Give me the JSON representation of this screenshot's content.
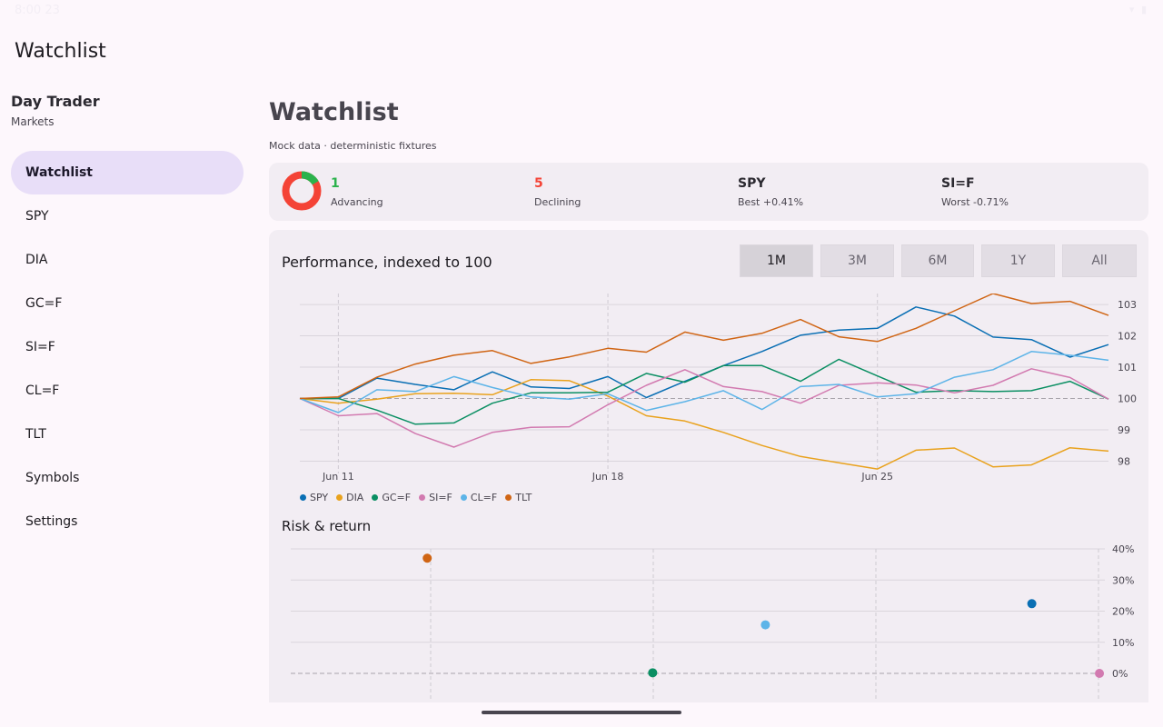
{
  "status_bar": {
    "time": "8:00 23",
    "icons": "wifi-icon battery-icon"
  },
  "app_bar": {
    "title": "Watchlist"
  },
  "sidebar": {
    "brand": "Day Trader",
    "subtitle": "Markets",
    "items": [
      {
        "label": "Watchlist",
        "active": true
      },
      {
        "label": "SPY"
      },
      {
        "label": "DIA"
      },
      {
        "label": "GC=F"
      },
      {
        "label": "SI=F"
      },
      {
        "label": "CL=F"
      },
      {
        "label": "TLT"
      },
      {
        "label": "Symbols"
      },
      {
        "label": "Settings"
      }
    ]
  },
  "main": {
    "title": "Watchlist",
    "subtitle": "Mock data · deterministic fixtures",
    "summary": {
      "advancing": {
        "value": "1",
        "label": "Advancing",
        "color": "#2bb24c"
      },
      "declining": {
        "value": "5",
        "label": "Declining",
        "color": "#f44336"
      },
      "best": {
        "value": "SPY",
        "label": "Best +0.41%"
      },
      "worst": {
        "value": "SI=F",
        "label": "Worst -0.71%"
      },
      "donut": {
        "advancing_count": 1,
        "declining_count": 5
      }
    },
    "performance": {
      "title": "Performance, indexed to 100",
      "ranges": [
        {
          "label": "1M",
          "active": true
        },
        {
          "label": "3M"
        },
        {
          "label": "6M"
        },
        {
          "label": "1Y"
        },
        {
          "label": "All"
        }
      ]
    },
    "risk": {
      "title": "Risk & return"
    }
  },
  "chart_data": [
    {
      "type": "line",
      "title": "Performance, indexed to 100",
      "x_ticks": [
        {
          "label": "Jun 11",
          "index": 1
        },
        {
          "label": "Jun 18",
          "index": 8
        },
        {
          "label": "Jun 25",
          "index": 15
        }
      ],
      "y_ticks": [
        98,
        99,
        100,
        101,
        102,
        103
      ],
      "ylim": [
        97.55,
        103.35
      ],
      "baseline": 100,
      "legend": "bottom-left",
      "series": [
        {
          "name": "SPY",
          "color": "#0a6fb4",
          "values": [
            100,
            100,
            100.65,
            100.45,
            100.28,
            100.85,
            100.37,
            100.32,
            100.7,
            100.03,
            100.55,
            101.05,
            101.5,
            102.02,
            102.18,
            102.24,
            102.92,
            102.63,
            101.96,
            101.88,
            101.32,
            101.72
          ]
        },
        {
          "name": "DIA",
          "color": "#e9a21d",
          "values": [
            100,
            99.85,
            99.98,
            100.15,
            100.17,
            100.12,
            100.6,
            100.57,
            100.08,
            99.45,
            99.28,
            98.92,
            98.5,
            98.15,
            97.95,
            97.75,
            98.35,
            98.42,
            97.82,
            97.88,
            98.43,
            98.32
          ]
        },
        {
          "name": "GC=F",
          "color": "#0b8f63",
          "values": [
            100,
            100,
            99.63,
            99.18,
            99.22,
            99.85,
            100.18,
            100.18,
            100.2,
            100.8,
            100.52,
            101.05,
            101.05,
            100.55,
            101.25,
            100.72,
            100.2,
            100.25,
            100.22,
            100.25,
            100.55,
            99.98
          ]
        },
        {
          "name": "SI=F",
          "color": "#d27ab0",
          "values": [
            100,
            99.45,
            99.52,
            98.88,
            98.45,
            98.92,
            99.08,
            99.1,
            99.8,
            100.42,
            100.92,
            100.38,
            100.22,
            99.85,
            100.42,
            100.5,
            100.43,
            100.18,
            100.42,
            100.95,
            100.67,
            99.98
          ]
        },
        {
          "name": "CL=F",
          "color": "#5db4e8",
          "values": [
            100,
            99.55,
            100.28,
            100.22,
            100.7,
            100.35,
            100.05,
            99.98,
            100.15,
            99.62,
            99.9,
            100.25,
            99.65,
            100.38,
            100.45,
            100.05,
            100.15,
            100.68,
            100.92,
            101.5,
            101.38,
            101.22
          ]
        },
        {
          "name": "TLT",
          "color": "#d06514",
          "values": [
            100,
            100.05,
            100.68,
            101.1,
            101.38,
            101.53,
            101.12,
            101.33,
            101.6,
            101.48,
            102.12,
            101.86,
            102.08,
            102.52,
            101.97,
            101.82,
            102.24,
            102.8,
            103.35,
            103.03,
            103.1,
            102.65
          ]
        }
      ]
    },
    {
      "type": "scatter",
      "title": "Risk & return",
      "y_ticks": [
        "40%",
        "30%",
        "20%",
        "10%",
        "0%"
      ],
      "ylim": [
        0,
        40
      ],
      "xlim": [
        0,
        36
      ],
      "points": [
        {
          "name": "TLT",
          "color": "#d06514",
          "x": 4,
          "y": 37
        },
        {
          "name": "GC=F",
          "color": "#0b8f63",
          "x": 15,
          "y": 0.2
        },
        {
          "name": "CL=F",
          "color": "#5db4e8",
          "x": 20.5,
          "y": 15.6
        },
        {
          "name": "SPY",
          "color": "#0a6fb4",
          "x": 33.5,
          "y": 22.4
        },
        {
          "name": "SI=F",
          "color": "#d27ab0",
          "x": 36.8,
          "y": 0
        }
      ]
    }
  ]
}
